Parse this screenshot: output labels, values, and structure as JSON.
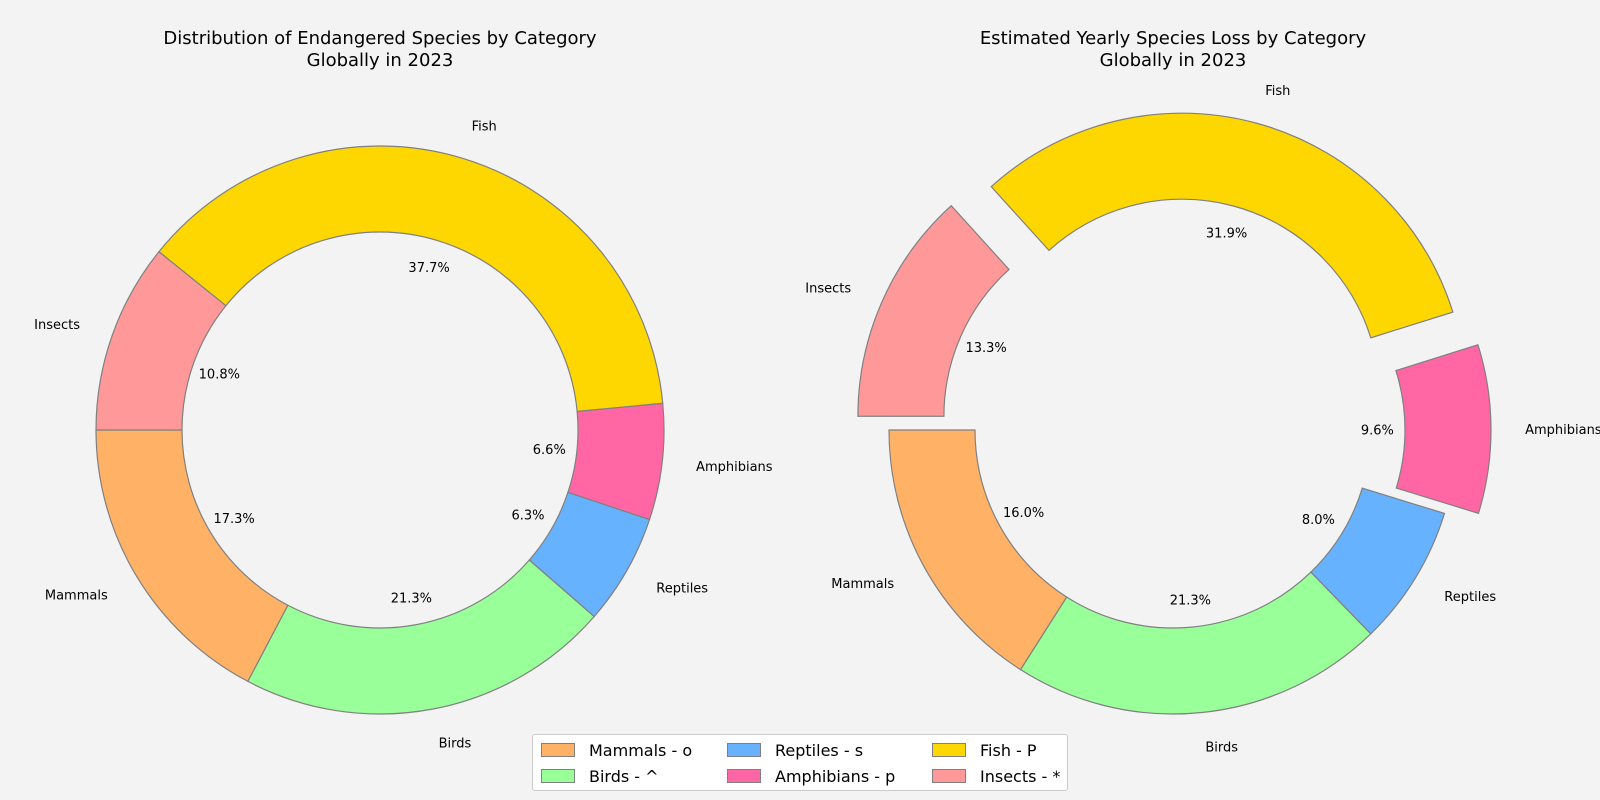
{
  "chart_data": [
    {
      "type": "pie",
      "donut": true,
      "title": "Distribution of Endangered Species by Category\nGlobally in 2023",
      "categories": [
        "Mammals",
        "Birds",
        "Reptiles",
        "Amphibians",
        "Fish",
        "Insects"
      ],
      "values": [
        17.3,
        21.3,
        6.3,
        6.6,
        37.7,
        10.8
      ],
      "value_labels": [
        "17.3%",
        "21.3%",
        "6.3%",
        "6.6%",
        "37.7%",
        "10.8%"
      ],
      "exploded": []
    },
    {
      "type": "pie",
      "donut": true,
      "title": "Estimated Yearly Species Loss by Category\nGlobally in 2023",
      "categories": [
        "Mammals",
        "Birds",
        "Reptiles",
        "Amphibians",
        "Fish",
        "Insects"
      ],
      "values": [
        16.0,
        21.3,
        8.0,
        9.6,
        31.9,
        13.3
      ],
      "value_labels": [
        "16.0%",
        "21.3%",
        "8.0%",
        "9.6%",
        "31.9%",
        "13.3%"
      ],
      "exploded": [
        "Amphibians",
        "Fish",
        "Insects"
      ]
    }
  ],
  "colors": {
    "Mammals": "#ffb266",
    "Birds": "#99ff99",
    "Reptiles": "#66b2ff",
    "Amphibians": "#ff66a3",
    "Fish": "#ffd700",
    "Insects": "#ff9999"
  },
  "legend": {
    "placement": "bottom-center",
    "items": [
      {
        "label": "Mammals - o",
        "category": "Mammals"
      },
      {
        "label": "Reptiles - s",
        "category": "Reptiles"
      },
      {
        "label": "Fish - P",
        "category": "Fish"
      },
      {
        "label": "Birds - ^",
        "category": "Birds"
      },
      {
        "label": "Amphibians - p",
        "category": "Amphibians"
      },
      {
        "label": "Insects - *",
        "category": "Insects"
      }
    ]
  }
}
